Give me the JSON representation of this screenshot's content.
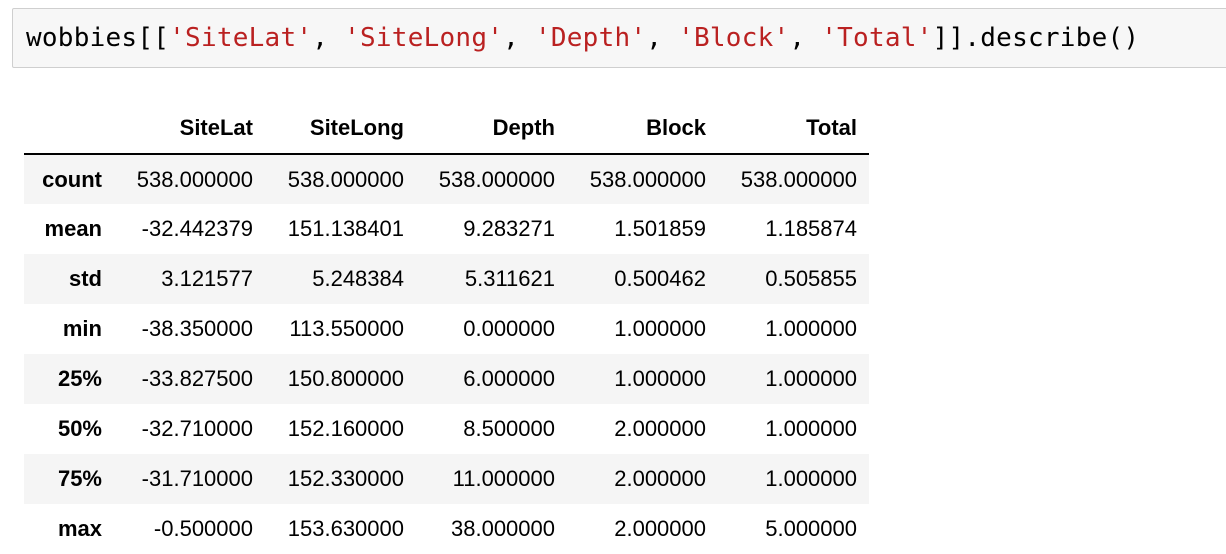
{
  "code": {
    "tokens": [
      {
        "text": "wobbies[[",
        "kind": "plain"
      },
      {
        "text": "'SiteLat'",
        "kind": "str"
      },
      {
        "text": ", ",
        "kind": "plain"
      },
      {
        "text": "'SiteLong'",
        "kind": "str"
      },
      {
        "text": ", ",
        "kind": "plain"
      },
      {
        "text": "'Depth'",
        "kind": "str"
      },
      {
        "text": ", ",
        "kind": "plain"
      },
      {
        "text": "'Block'",
        "kind": "str"
      },
      {
        "text": ", ",
        "kind": "plain"
      },
      {
        "text": "'Total'",
        "kind": "str"
      },
      {
        "text": "]].describe()",
        "kind": "plain"
      }
    ],
    "string_color": "#ba2121"
  },
  "table": {
    "columns": [
      "SiteLat",
      "SiteLong",
      "Depth",
      "Block",
      "Total"
    ],
    "rows": [
      {
        "index": "count",
        "values": [
          "538.000000",
          "538.000000",
          "538.000000",
          "538.000000",
          "538.000000"
        ]
      },
      {
        "index": "mean",
        "values": [
          "-32.442379",
          "151.138401",
          "9.283271",
          "1.501859",
          "1.185874"
        ]
      },
      {
        "index": "std",
        "values": [
          "3.121577",
          "5.248384",
          "5.311621",
          "0.500462",
          "0.505855"
        ]
      },
      {
        "index": "min",
        "values": [
          "-38.350000",
          "113.550000",
          "0.000000",
          "1.000000",
          "1.000000"
        ]
      },
      {
        "index": "25%",
        "values": [
          "-33.827500",
          "150.800000",
          "6.000000",
          "1.000000",
          "1.000000"
        ]
      },
      {
        "index": "50%",
        "values": [
          "-32.710000",
          "152.160000",
          "8.500000",
          "2.000000",
          "1.000000"
        ]
      },
      {
        "index": "75%",
        "values": [
          "-31.710000",
          "152.330000",
          "11.000000",
          "2.000000",
          "1.000000"
        ]
      },
      {
        "index": "max",
        "values": [
          "-0.500000",
          "153.630000",
          "38.000000",
          "2.000000",
          "5.000000"
        ]
      }
    ]
  }
}
